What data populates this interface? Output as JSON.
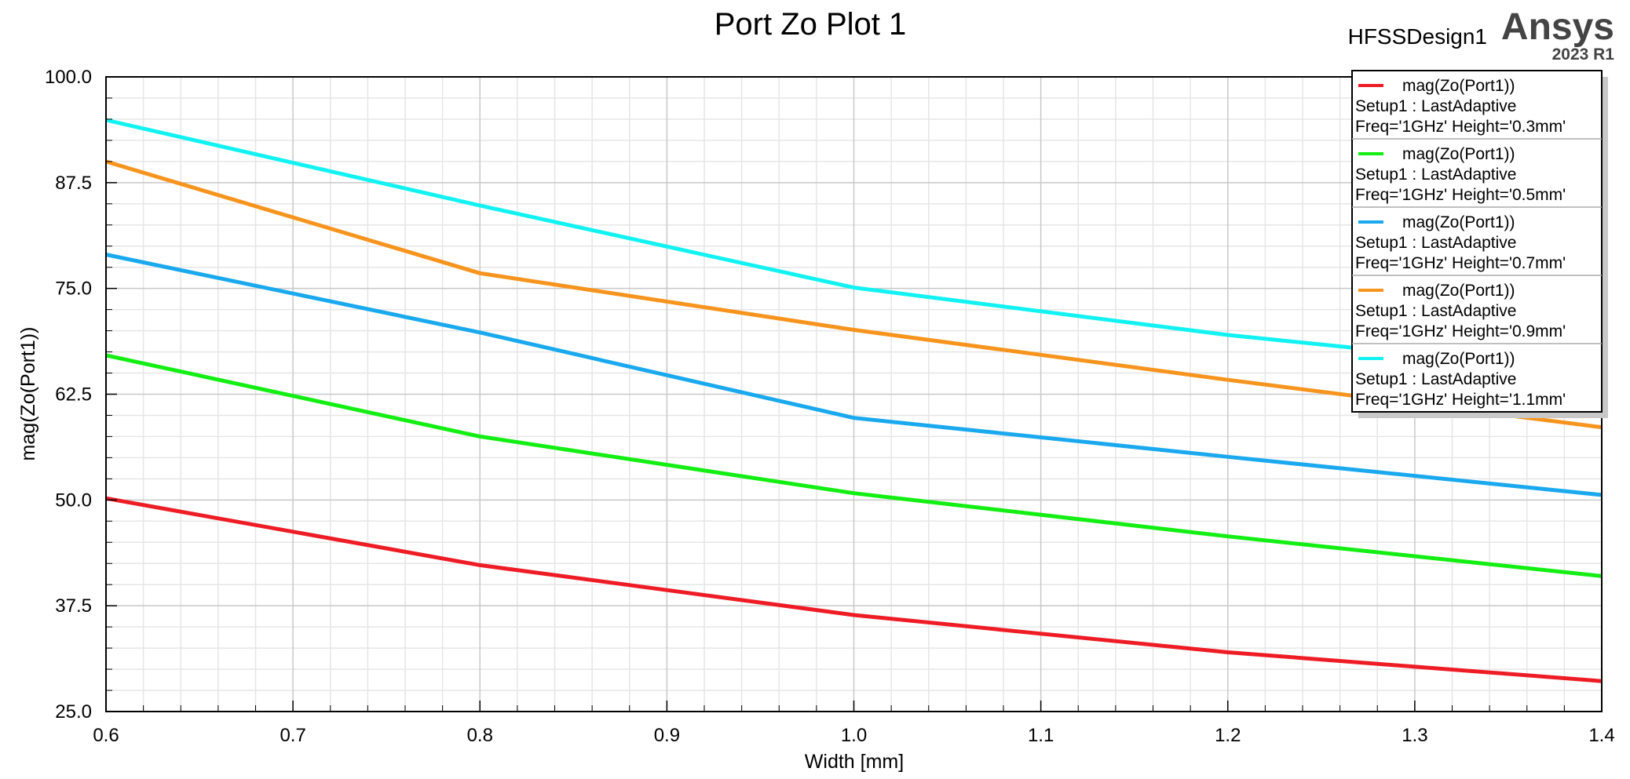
{
  "header": {
    "design_name": "HFSSDesign1",
    "brand": "Ansys",
    "version": "2023 R1"
  },
  "chart_data": {
    "type": "line",
    "title": "Port Zo Plot 1",
    "xlabel": "Width [mm]",
    "ylabel": "mag(Zo(Port1))",
    "xlim": [
      0.6,
      1.4
    ],
    "ylim": [
      25.0,
      100.0
    ],
    "xticks": [
      "0.6",
      "0.7",
      "0.8",
      "0.9",
      "1.0",
      "1.1",
      "1.2",
      "1.3",
      "1.4"
    ],
    "yticks": [
      "25.0",
      "37.5",
      "50.0",
      "62.5",
      "75.0",
      "87.5",
      "100.0"
    ],
    "grid": true,
    "legend_position": "top-right",
    "x": [
      0.6,
      0.8,
      1.0,
      1.2,
      1.4
    ],
    "series": [
      {
        "name": "mag(Zo(Port1))",
        "setup": "Setup1 : LastAdaptive",
        "variation": "Freq='1GHz' Height='0.3mm'",
        "color": "#ee1c25",
        "values": [
          50.2,
          42.3,
          36.4,
          32.0,
          28.6
        ]
      },
      {
        "name": "mag(Zo(Port1))",
        "setup": "Setup1 : LastAdaptive",
        "variation": "Freq='1GHz' Height='0.5mm'",
        "color": "#13ee13",
        "values": [
          67.1,
          57.5,
          50.8,
          45.7,
          41.0
        ]
      },
      {
        "name": "mag(Zo(Port1))",
        "setup": "Setup1 : LastAdaptive",
        "variation": "Freq='1GHz' Height='0.7mm'",
        "color": "#1aa9ee",
        "values": [
          79.0,
          69.8,
          59.7,
          55.1,
          50.6
        ]
      },
      {
        "name": "mag(Zo(Port1))",
        "setup": "Setup1 : LastAdaptive",
        "variation": "Freq='1GHz' Height='0.9mm'",
        "color": "#f7941d",
        "values": [
          90.0,
          76.8,
          70.1,
          64.2,
          58.6
        ]
      },
      {
        "name": "mag(Zo(Port1))",
        "setup": "Setup1 : LastAdaptive",
        "variation": "Freq='1GHz' Height='1.1mm'",
        "color": "#13f2f2",
        "values": [
          94.9,
          84.8,
          75.1,
          69.5,
          65.0
        ]
      }
    ]
  }
}
